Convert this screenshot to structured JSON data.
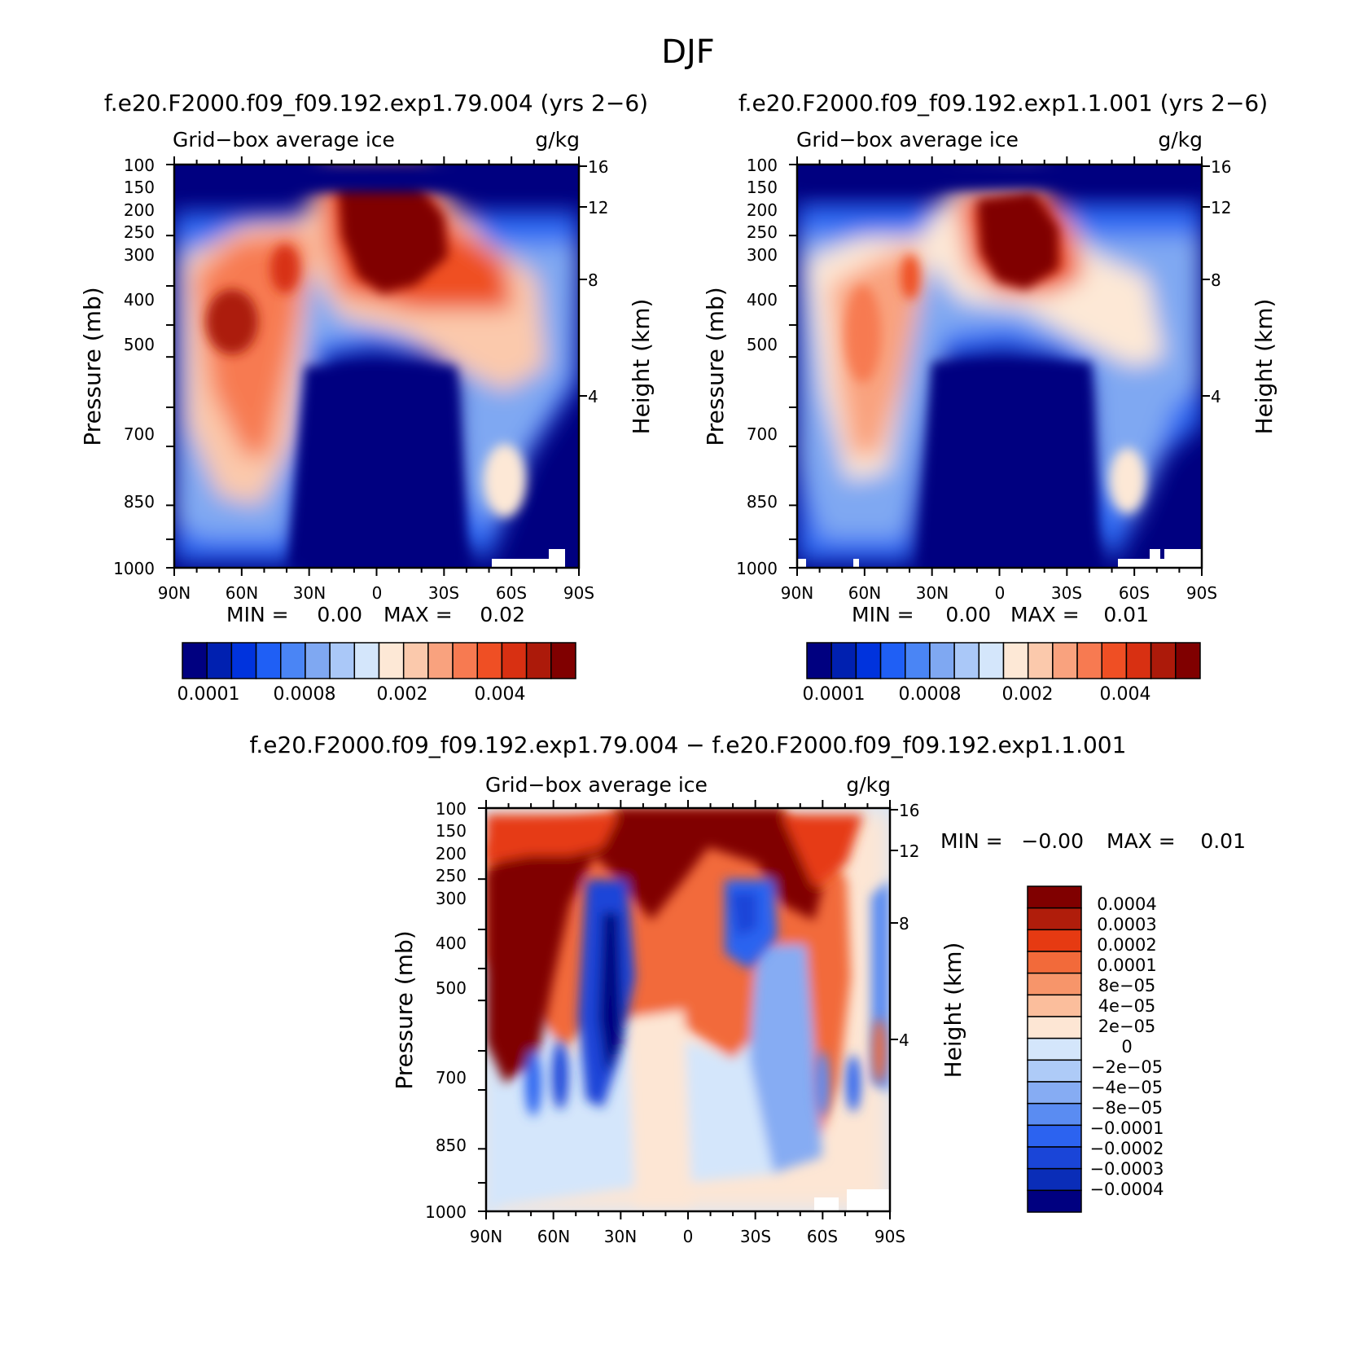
{
  "page_title": "DJF",
  "diff_title": "f.e20.F2000.f09_f09.192.exp1.79.004 − f.e20.F2000.f09_f09.192.exp1.1.001",
  "field_colors": [
    "#000080",
    "#0020b0",
    "#0033dd",
    "#1f5ff5",
    "#4a85f5",
    "#7fa8f2",
    "#aac8f8",
    "#d4e6fb",
    "#fde8d6",
    "#fbc9ac",
    "#f9a27e",
    "#f77a51",
    "#ef4f24",
    "#d83012",
    "#ac1a0a",
    "#800000"
  ],
  "diff_colors": [
    "#800000",
    "#b01d0b",
    "#e63a12",
    "#f26a3a",
    "#f7956a",
    "#fbbe9c",
    "#fde6d4",
    "#d4e6fb",
    "#aecbf7",
    "#86acf3",
    "#5a8cf2",
    "#2c63f0",
    "#1a45d8",
    "#0a2db8",
    "#000080"
  ],
  "chart_data": [
    {
      "type": "heatmap",
      "title": "f.e20.F2000.f09_f09.192.exp1.79.004 (yrs 2−6)",
      "left_subtitle": "Grid−box average ice",
      "right_subtitle": "g/kg",
      "ylabel": "Pressure (mb)",
      "ylabel_right": "Height (km)",
      "x_ticks": [
        "90N",
        "60N",
        "30N",
        "0",
        "30S",
        "60S",
        "90S"
      ],
      "y_ticks": [
        "100",
        "150",
        "200",
        "250",
        "300",
        "400",
        "500",
        "700",
        "850",
        "1000"
      ],
      "height_ticks": [
        "16",
        "12",
        "8",
        "4"
      ],
      "stats": {
        "min_label": "MIN =",
        "min_value": "0.00",
        "max_label": "MAX =",
        "max_value": "0.02"
      },
      "colorbar_labels": [
        "0.0001",
        "0.0008",
        "0.002",
        "0.004"
      ],
      "colorbar_levels": 16
    },
    {
      "type": "heatmap",
      "title": "f.e20.F2000.f09_f09.192.exp1.1.001 (yrs 2−6)",
      "left_subtitle": "Grid−box average ice",
      "right_subtitle": "g/kg",
      "ylabel": "Pressure (mb)",
      "ylabel_right": "Height (km)",
      "x_ticks": [
        "90N",
        "60N",
        "30N",
        "0",
        "30S",
        "60S",
        "90S"
      ],
      "y_ticks": [
        "100",
        "150",
        "200",
        "250",
        "300",
        "400",
        "500",
        "700",
        "850",
        "1000"
      ],
      "height_ticks": [
        "16",
        "12",
        "8",
        "4"
      ],
      "stats": {
        "min_label": "MIN =",
        "min_value": "0.00",
        "max_label": "MAX =",
        "max_value": "0.01"
      },
      "colorbar_labels": [
        "0.0001",
        "0.0008",
        "0.002",
        "0.004"
      ],
      "colorbar_levels": 16
    },
    {
      "type": "heatmap",
      "title": "",
      "left_subtitle": "Grid−box average ice",
      "right_subtitle": "g/kg",
      "ylabel": "Pressure (mb)",
      "ylabel_right": "Height (km)",
      "x_ticks": [
        "90N",
        "60N",
        "30N",
        "0",
        "30S",
        "60S",
        "90S"
      ],
      "y_ticks": [
        "100",
        "150",
        "200",
        "250",
        "300",
        "400",
        "500",
        "700",
        "850",
        "1000"
      ],
      "height_ticks": [
        "16",
        "12",
        "8",
        "4"
      ],
      "stats": {
        "min_label": "MIN =",
        "min_value": "−0.00",
        "max_label": "MAX =",
        "max_value": "0.01"
      },
      "colorbar_labels": [
        "0.0004",
        "0.0003",
        "0.0002",
        "0.0001",
        "8e−05",
        "4e−05",
        "2e−05",
        "0",
        "−2e−05",
        "−4e−05",
        "−8e−05",
        "−0.0001",
        "−0.0002",
        "−0.0003",
        "−0.0004"
      ]
    }
  ]
}
